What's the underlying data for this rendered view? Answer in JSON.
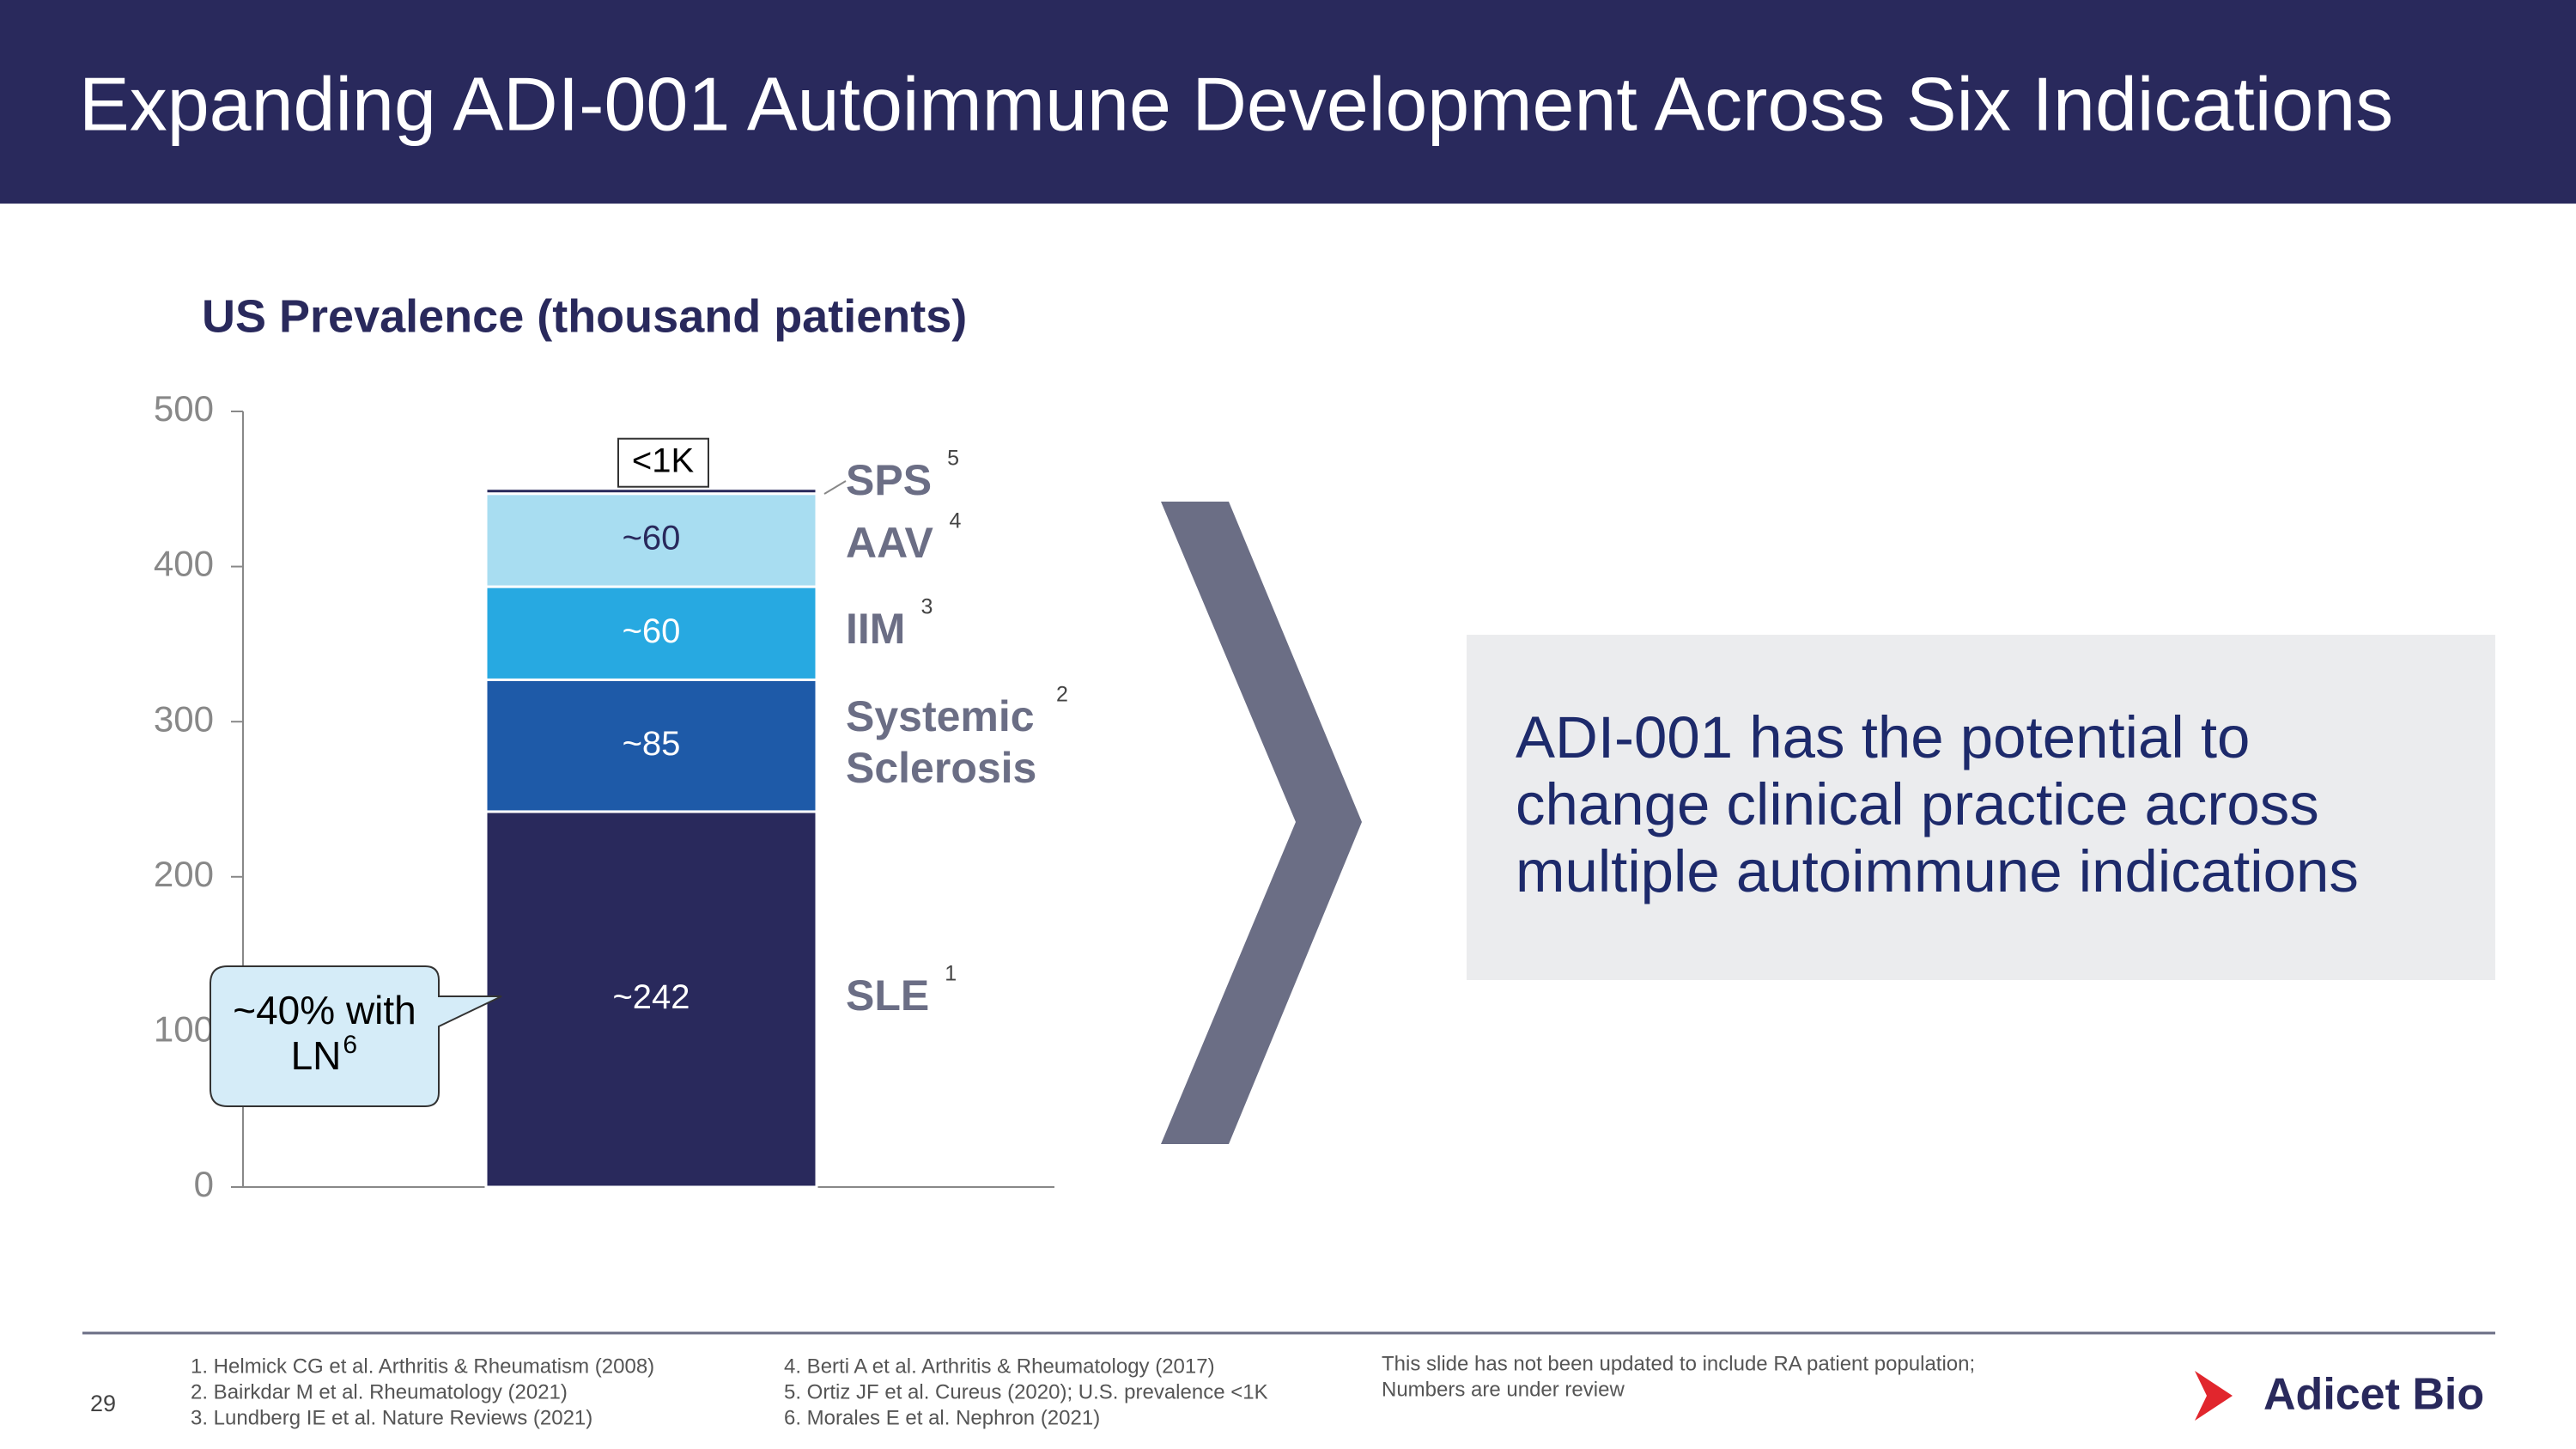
{
  "header": {
    "title": "Expanding ADI-001 Autoimmune Development Across Six Indications"
  },
  "chart_data": {
    "type": "bar",
    "stacked": true,
    "title": "US Prevalence (thousand patients)",
    "categories": [
      null
    ],
    "series": [
      {
        "name": "SLE",
        "footnote": "1",
        "color": "#29295c",
        "values": [
          242
        ],
        "value_labels": [
          "~242"
        ]
      },
      {
        "name": "Systemic Sclerosis",
        "footnote": "2",
        "color": "#1e5aa8",
        "values": [
          85
        ],
        "value_labels": [
          "~85"
        ]
      },
      {
        "name": "IIM",
        "footnote": "3",
        "color": "#27a9e1",
        "values": [
          60
        ],
        "value_labels": [
          "~60"
        ]
      },
      {
        "name": "AAV",
        "footnote": "4",
        "color": "#a8ddf1",
        "values": [
          60
        ],
        "value_labels": [
          "~60"
        ]
      },
      {
        "name": "SPS",
        "footnote": "5",
        "color": "#29295c",
        "values": [
          1
        ],
        "value_labels": [
          "<1K"
        ]
      }
    ],
    "ylim": [
      0,
      500
    ],
    "yticks": [
      0,
      100,
      200,
      300,
      400,
      500
    ],
    "annotation": {
      "lines": [
        "~40% with",
        "LN"
      ],
      "footnote": "6"
    }
  },
  "message": [
    "ADI-001 has the potential to",
    "change clinical practice across",
    "multiple autoimmune indications"
  ],
  "footer": {
    "page": "29",
    "references": [
      [
        "1. Helmick CG et al. Arthritis & Rheumatism (2008)",
        "2. Bairkdar M et al. Rheumatology (2021)",
        "3. Lundberg IE et al. Nature Reviews (2021)"
      ],
      [
        "4. Berti A  et al. Arthritis & Rheumatology  (2017)",
        "5. Ortiz JF et al. Cureus (2020); U.S. prevalence <1K",
        "6. Morales E et al. Nephron (2021)"
      ]
    ],
    "disclaimer": [
      "This slide has not been updated to include RA patient population;",
      "Numbers are under review"
    ],
    "logo": "Adicet Bio"
  }
}
